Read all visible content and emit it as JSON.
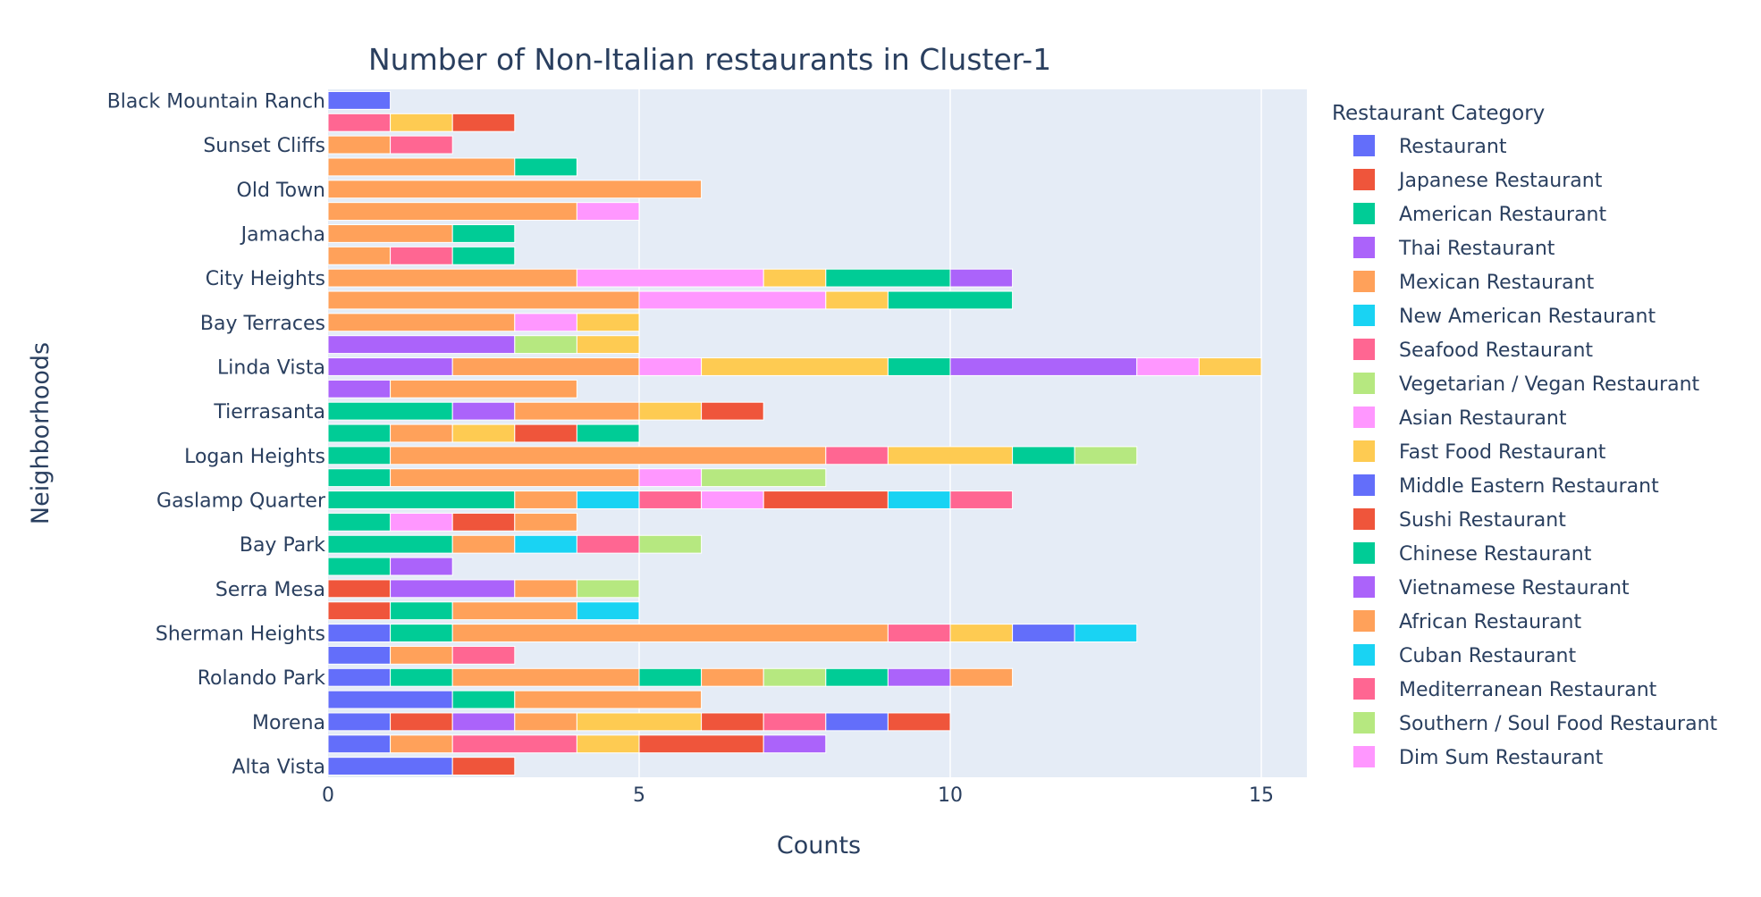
{
  "chart_data": {
    "type": "bar",
    "orientation": "horizontal",
    "barmode": "stack",
    "title": "Number of Non-Italian restaurants in Cluster-1",
    "xlabel": "Counts",
    "ylabel": "Neighborhoods",
    "xlim": [
      0,
      15.8
    ],
    "xticks": [
      0,
      5,
      10,
      15
    ],
    "grid": true,
    "legend_title": "Restaurant Category",
    "legend_position": "right",
    "categories": [
      "Black Mountain Ranch",
      "",
      "Sunset Cliffs",
      "",
      "Old Town",
      "",
      "Jamacha",
      "",
      "City Heights",
      "",
      "Bay Terraces",
      "",
      "Linda Vista",
      "",
      "Tierrasanta",
      "",
      "Logan Heights",
      "",
      "Gaslamp Quarter",
      "",
      "Bay Park",
      "",
      "Serra Mesa",
      "",
      "Sherman Heights",
      "",
      "Rolando Park",
      "",
      "Morena",
      "",
      "Alta Vista"
    ],
    "series": [
      {
        "name": "Restaurant",
        "color": "#636efa"
      },
      {
        "name": "Japanese Restaurant",
        "color": "#EF553B"
      },
      {
        "name": "American Restaurant",
        "color": "#00cc96"
      },
      {
        "name": "Thai Restaurant",
        "color": "#ab63fa"
      },
      {
        "name": "Mexican Restaurant",
        "color": "#FFA15A"
      },
      {
        "name": "New American Restaurant",
        "color": "#19d3f3"
      },
      {
        "name": "Seafood Restaurant",
        "color": "#FF6692"
      },
      {
        "name": "Vegetarian / Vegan Restaurant",
        "color": "#B6E880"
      },
      {
        "name": "Asian Restaurant",
        "color": "#FF97FF"
      },
      {
        "name": "Fast Food Restaurant",
        "color": "#FECB52"
      },
      {
        "name": "Middle Eastern Restaurant",
        "color": "#636efa"
      },
      {
        "name": "Sushi Restaurant",
        "color": "#EF553B"
      },
      {
        "name": "Chinese Restaurant",
        "color": "#00cc96"
      },
      {
        "name": "Vietnamese Restaurant",
        "color": "#ab63fa"
      },
      {
        "name": "African Restaurant",
        "color": "#FFA15A"
      },
      {
        "name": "Cuban Restaurant",
        "color": "#19d3f3"
      },
      {
        "name": "Mediterranean Restaurant",
        "color": "#FF6692"
      },
      {
        "name": "Southern / Soul Food Restaurant",
        "color": "#B6E880"
      },
      {
        "name": "Dim Sum Restaurant",
        "color": "#FF97FF"
      }
    ],
    "rows": [
      [
        [
          0,
          1
        ]
      ],
      [
        [
          6,
          1
        ],
        [
          9,
          1
        ],
        [
          1,
          1
        ]
      ],
      [
        [
          4,
          1
        ],
        [
          6,
          1
        ]
      ],
      [
        [
          4,
          3
        ],
        [
          2,
          1
        ]
      ],
      [
        [
          4,
          6
        ]
      ],
      [
        [
          4,
          4
        ],
        [
          8,
          1
        ]
      ],
      [
        [
          4,
          2
        ],
        [
          2,
          1
        ]
      ],
      [
        [
          4,
          1
        ],
        [
          6,
          1
        ],
        [
          2,
          1
        ]
      ],
      [
        [
          4,
          4
        ],
        [
          8,
          3
        ],
        [
          9,
          1
        ],
        [
          2,
          2
        ],
        [
          3,
          1
        ]
      ],
      [
        [
          4,
          5
        ],
        [
          8,
          3
        ],
        [
          9,
          1
        ],
        [
          2,
          2
        ]
      ],
      [
        [
          4,
          3
        ],
        [
          8,
          1
        ],
        [
          9,
          1
        ]
      ],
      [
        [
          3,
          3
        ],
        [
          7,
          1
        ],
        [
          9,
          1
        ]
      ],
      [
        [
          3,
          2
        ],
        [
          4,
          3
        ],
        [
          8,
          1
        ],
        [
          9,
          3
        ],
        [
          2,
          1
        ],
        [
          3,
          3
        ],
        [
          8,
          1
        ],
        [
          9,
          1
        ]
      ],
      [
        [
          3,
          1
        ],
        [
          4,
          3
        ]
      ],
      [
        [
          2,
          2
        ],
        [
          3,
          1
        ],
        [
          4,
          2
        ],
        [
          9,
          1
        ],
        [
          1,
          1
        ]
      ],
      [
        [
          2,
          1
        ],
        [
          4,
          1
        ],
        [
          9,
          1
        ],
        [
          1,
          1
        ],
        [
          2,
          1
        ]
      ],
      [
        [
          2,
          1
        ],
        [
          4,
          7
        ],
        [
          6,
          1
        ],
        [
          9,
          2
        ],
        [
          2,
          1
        ],
        [
          7,
          1
        ]
      ],
      [
        [
          2,
          1
        ],
        [
          4,
          4
        ],
        [
          8,
          1
        ],
        [
          7,
          2
        ]
      ],
      [
        [
          2,
          3
        ],
        [
          4,
          1
        ],
        [
          5,
          1
        ],
        [
          6,
          1
        ],
        [
          8,
          1
        ],
        [
          1,
          2
        ],
        [
          5,
          1
        ],
        [
          6,
          1
        ]
      ],
      [
        [
          2,
          1
        ],
        [
          8,
          1
        ],
        [
          1,
          1
        ],
        [
          4,
          1
        ]
      ],
      [
        [
          2,
          2
        ],
        [
          4,
          1
        ],
        [
          5,
          1
        ],
        [
          6,
          1
        ],
        [
          7,
          1
        ]
      ],
      [
        [
          2,
          1
        ],
        [
          3,
          1
        ]
      ],
      [
        [
          1,
          1
        ],
        [
          3,
          2
        ],
        [
          4,
          1
        ],
        [
          7,
          1
        ]
      ],
      [
        [
          1,
          1
        ],
        [
          2,
          1
        ],
        [
          4,
          2
        ],
        [
          5,
          1
        ]
      ],
      [
        [
          0,
          1
        ],
        [
          2,
          1
        ],
        [
          4,
          7
        ],
        [
          6,
          1
        ],
        [
          9,
          1
        ],
        [
          0,
          1
        ],
        [
          5,
          1
        ]
      ],
      [
        [
          0,
          1
        ],
        [
          4,
          1
        ],
        [
          6,
          1
        ]
      ],
      [
        [
          0,
          1
        ],
        [
          2,
          1
        ],
        [
          4,
          3
        ],
        [
          2,
          1
        ],
        [
          4,
          1
        ],
        [
          7,
          1
        ],
        [
          2,
          1
        ],
        [
          3,
          1
        ],
        [
          4,
          1
        ]
      ],
      [
        [
          0,
          2
        ],
        [
          2,
          1
        ],
        [
          4,
          3
        ]
      ],
      [
        [
          0,
          1
        ],
        [
          1,
          1
        ],
        [
          3,
          1
        ],
        [
          4,
          1
        ],
        [
          9,
          2
        ],
        [
          1,
          1
        ],
        [
          6,
          1
        ],
        [
          0,
          1
        ],
        [
          1,
          1
        ]
      ],
      [
        [
          0,
          1
        ],
        [
          4,
          1
        ],
        [
          6,
          2
        ],
        [
          9,
          1
        ],
        [
          1,
          2
        ],
        [
          3,
          1
        ]
      ],
      [
        [
          0,
          2
        ],
        [
          1,
          1
        ]
      ]
    ]
  }
}
